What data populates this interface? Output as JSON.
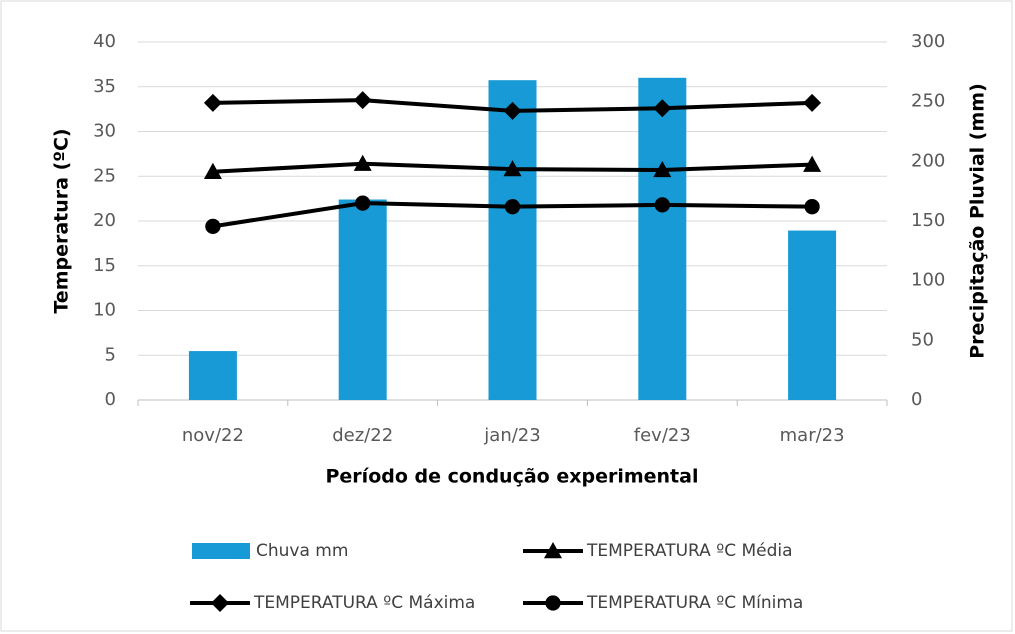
{
  "chart_data": {
    "type": "combo",
    "x_label": "Período de condução experimental",
    "y_label": "Temperatura (ºC)",
    "y2_label": "Precipitação Pluvial (mm)",
    "categories": [
      "nov/22",
      "dez/22",
      "jan/23",
      "fev/23",
      "mar/23"
    ],
    "ylim": [
      0,
      40
    ],
    "yticks": [
      0,
      5,
      10,
      15,
      20,
      25,
      30,
      35,
      40
    ],
    "y2lim": [
      0,
      300
    ],
    "y2ticks": [
      0,
      50,
      100,
      150,
      200,
      250,
      300
    ],
    "grid": true,
    "series": [
      {
        "name": "Chuva mm",
        "type": "bar",
        "axis": "y2",
        "color": "#189ad6",
        "values": [
          41,
          168,
          268,
          270,
          142
        ]
      },
      {
        "name": "TEMPERATURA ºC Média",
        "type": "line",
        "marker": "triangle",
        "color": "#000000",
        "values": [
          25.5,
          26.4,
          25.8,
          25.7,
          26.3
        ]
      },
      {
        "name": "TEMPERATURA ºC Máxima",
        "type": "line",
        "marker": "diamond",
        "color": "#000000",
        "values": [
          33.2,
          33.5,
          32.3,
          32.6,
          33.2
        ]
      },
      {
        "name": "TEMPERATURA ºC Mínima",
        "type": "line",
        "marker": "circle",
        "color": "#000000",
        "values": [
          19.4,
          22.0,
          21.6,
          21.8,
          21.6
        ]
      }
    ]
  }
}
